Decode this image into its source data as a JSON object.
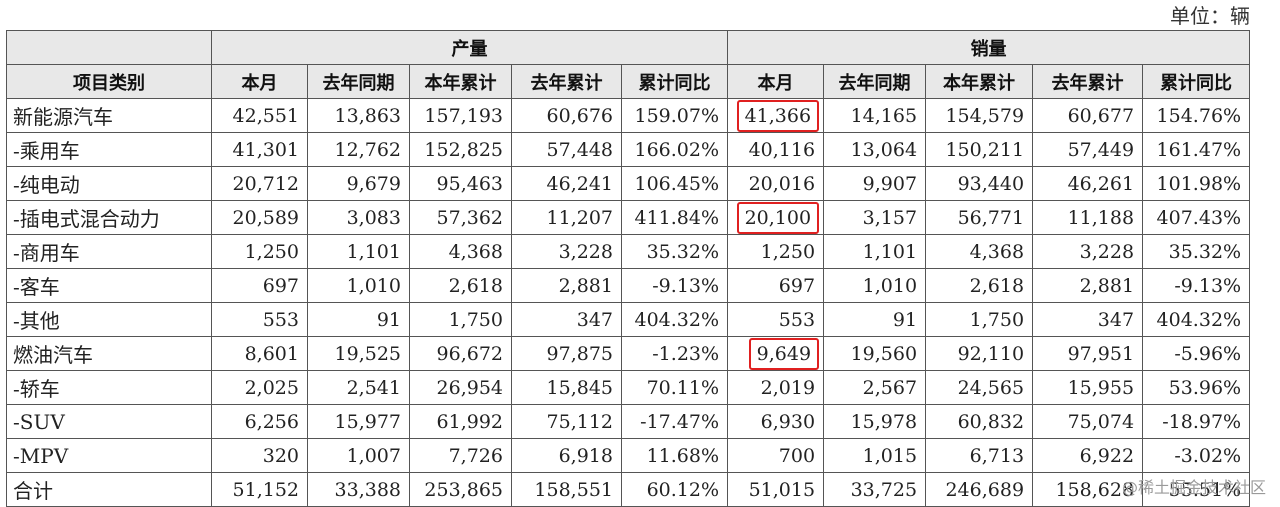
{
  "unit_label": "单位：辆",
  "headers": {
    "category": "项目类别",
    "production": "产量",
    "sales": "销量",
    "columns": [
      "本月",
      "去年同期",
      "本年累计",
      "去年累计",
      "累计同比",
      "本月",
      "去年同期",
      "本年累计",
      "去年累计",
      "累计同比"
    ]
  },
  "rows": [
    {
      "label": "新能源汽车",
      "cells": [
        "42,551",
        "13,863",
        "157,193",
        "60,676",
        "159.07%",
        "41,366",
        "14,165",
        "154,579",
        "60,677",
        "154.76%"
      ],
      "highlight": 5
    },
    {
      "label": "-乘用车",
      "cells": [
        "41,301",
        "12,762",
        "152,825",
        "57,448",
        "166.02%",
        "40,116",
        "13,064",
        "150,211",
        "57,449",
        "161.47%"
      ]
    },
    {
      "label": "-纯电动",
      "cells": [
        "20,712",
        "9,679",
        "95,463",
        "46,241",
        "106.45%",
        "20,016",
        "9,907",
        "93,440",
        "46,261",
        "101.98%"
      ]
    },
    {
      "label": "-插电式混合动力",
      "cells": [
        "20,589",
        "3,083",
        "57,362",
        "11,207",
        "411.84%",
        "20,100",
        "3,157",
        "56,771",
        "11,188",
        "407.43%"
      ],
      "highlight": 5
    },
    {
      "label": "-商用车",
      "cells": [
        "1,250",
        "1,101",
        "4,368",
        "3,228",
        "35.32%",
        "1,250",
        "1,101",
        "4,368",
        "3,228",
        "35.32%"
      ]
    },
    {
      "label": "-客车",
      "cells": [
        "697",
        "1,010",
        "2,618",
        "2,881",
        "-9.13%",
        "697",
        "1,010",
        "2,618",
        "2,881",
        "-9.13%"
      ]
    },
    {
      "label": "-其他",
      "cells": [
        "553",
        "91",
        "1,750",
        "347",
        "404.32%",
        "553",
        "91",
        "1,750",
        "347",
        "404.32%"
      ]
    },
    {
      "label": "燃油汽车",
      "cells": [
        "8,601",
        "19,525",
        "96,672",
        "97,875",
        "-1.23%",
        "9,649",
        "19,560",
        "92,110",
        "97,951",
        "-5.96%"
      ],
      "highlight": 5
    },
    {
      "label": "-轿车",
      "cells": [
        "2,025",
        "2,541",
        "26,954",
        "15,845",
        "70.11%",
        "2,019",
        "2,567",
        "24,565",
        "15,955",
        "53.96%"
      ]
    },
    {
      "label": "-SUV",
      "cells": [
        "6,256",
        "15,977",
        "61,992",
        "75,112",
        "-17.47%",
        "6,930",
        "15,978",
        "60,832",
        "75,074",
        "-18.97%"
      ]
    },
    {
      "label": "-MPV",
      "cells": [
        "320",
        "1,007",
        "7,726",
        "6,918",
        "11.68%",
        "700",
        "1,015",
        "6,713",
        "6,922",
        "-3.02%"
      ]
    },
    {
      "label": "合计",
      "cells": [
        "51,152",
        "33,388",
        "253,865",
        "158,551",
        "60.12%",
        "51,015",
        "33,725",
        "246,689",
        "158,628",
        "55.51%"
      ]
    }
  ],
  "highlight_color": "#e02020",
  "watermark": "@稀土掘金技术社区"
}
